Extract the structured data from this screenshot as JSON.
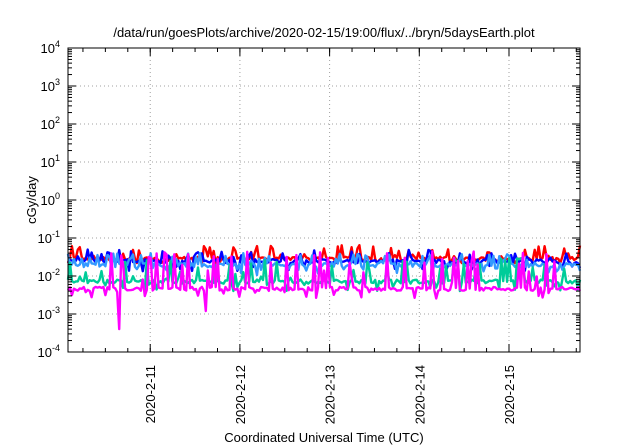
{
  "chart_data": {
    "type": "line",
    "title": "/data/run/goesPlots/archive/2020-02-15/19:00/flux/../bryn/5daysEarth.plot",
    "xlabel": "Coordinated Universal Time (UTC)",
    "ylabel": "cGy/day",
    "yscale": "log",
    "ylim": [
      0.0001,
      10000
    ],
    "xlim": [
      "2020-02-10T02:00",
      "2020-02-15T19:00"
    ],
    "grid": true,
    "y_ticks": [
      {
        "base": "10",
        "exp": "-4"
      },
      {
        "base": "10",
        "exp": "-3"
      },
      {
        "base": "10",
        "exp": "-2"
      },
      {
        "base": "10",
        "exp": "-1"
      },
      {
        "base": "10",
        "exp": "0"
      },
      {
        "base": "10",
        "exp": "1"
      },
      {
        "base": "10",
        "exp": "2"
      },
      {
        "base": "10",
        "exp": "3"
      },
      {
        "base": "10",
        "exp": "4"
      }
    ],
    "x_ticks": [
      "2020-2-11",
      "2020-2-12",
      "2020-2-13",
      "2020-2-14",
      "2020-2-15"
    ],
    "series": [
      {
        "color": "#ff0000",
        "x": [
          "2020-02-10T02:00",
          "2020-02-15T19:00"
        ],
        "baseline": 0.028,
        "spike_max": 0.065,
        "min": 0.022
      },
      {
        "color": "#0000ff",
        "x": [
          "2020-02-10T02:00",
          "2020-02-15T19:00"
        ],
        "baseline": 0.024,
        "spike_max": 0.05,
        "min": 0.012
      },
      {
        "color": "#3399ff",
        "x": [
          "2020-02-10T02:00",
          "2020-02-15T19:00"
        ],
        "baseline": 0.019,
        "spike_max": 0.04,
        "min": 0.009
      },
      {
        "color": "#00cc99",
        "x": [
          "2020-02-10T02:00",
          "2020-02-15T19:00"
        ],
        "baseline": 0.007,
        "spike_max": 0.03,
        "min": 0.004
      },
      {
        "color": "#ff00ff",
        "x": [
          "2020-02-10T02:00",
          "2020-02-15T19:00"
        ],
        "baseline": 0.0045,
        "spike_max": 0.045,
        "min": 0.0004
      }
    ]
  }
}
